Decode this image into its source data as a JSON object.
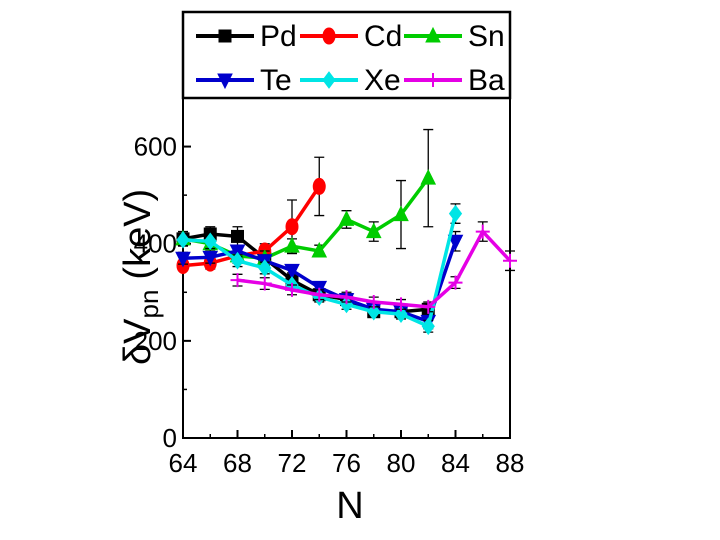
{
  "chart_data": {
    "type": "line",
    "title": "",
    "xlabel": "N",
    "ylabel": {
      "main": "δV",
      "sub": "pn",
      "unit": "(keV)"
    },
    "xlim": [
      64,
      88
    ],
    "ylim": [
      0,
      700
    ],
    "xticks": [
      64,
      68,
      72,
      76,
      80,
      84,
      88
    ],
    "yticks": [
      0,
      200,
      400,
      600
    ],
    "xtick_labels": [
      "64",
      "68",
      "72",
      "76",
      "80",
      "84",
      "88"
    ],
    "ytick_labels": [
      "0",
      "200",
      "400",
      "600"
    ],
    "legend_position": "top",
    "series": [
      {
        "name": "Pd",
        "color": "#000000",
        "marker": "square",
        "points": [
          {
            "x": 64,
            "y": 410,
            "err": 15
          },
          {
            "x": 66,
            "y": 420,
            "err": 15
          },
          {
            "x": 68,
            "y": 415,
            "err": 20
          },
          {
            "x": 70,
            "y": 370,
            "err": 15
          },
          {
            "x": 72,
            "y": 325,
            "err": 15
          },
          {
            "x": 74,
            "y": 295,
            "err": 12
          },
          {
            "x": 76,
            "y": 285,
            "err": 10
          },
          {
            "x": 78,
            "y": 260,
            "err": 10
          },
          {
            "x": 80,
            "y": 260,
            "err": 10
          },
          {
            "x": 82,
            "y": 265,
            "err": 10
          }
        ]
      },
      {
        "name": "Cd",
        "color": "#ff0000",
        "marker": "circle",
        "points": [
          {
            "x": 64,
            "y": 355,
            "err": 10
          },
          {
            "x": 66,
            "y": 360,
            "err": 12
          },
          {
            "x": 68,
            "y": 375,
            "err": 15
          },
          {
            "x": 70,
            "y": 385,
            "err": 15
          },
          {
            "x": 72,
            "y": 435,
            "err": 55
          },
          {
            "x": 74,
            "y": 518,
            "err": 60
          }
        ]
      },
      {
        "name": "Sn",
        "color": "#00cc00",
        "marker": "triangle-up",
        "points": [
          {
            "x": 64,
            "y": 410,
            "err": 12
          },
          {
            "x": 66,
            "y": 400,
            "err": 15
          },
          {
            "x": 68,
            "y": 375,
            "err": 15
          },
          {
            "x": 70,
            "y": 370,
            "err": 15
          },
          {
            "x": 72,
            "y": 395,
            "err": 15
          },
          {
            "x": 74,
            "y": 385,
            "err": 12
          },
          {
            "x": 76,
            "y": 450,
            "err": 18
          },
          {
            "x": 78,
            "y": 425,
            "err": 20
          },
          {
            "x": 80,
            "y": 460,
            "err": 70
          },
          {
            "x": 82,
            "y": 535,
            "err": 100
          }
        ]
      },
      {
        "name": "Te",
        "color": "#0000cc",
        "marker": "triangle-down",
        "points": [
          {
            "x": 64,
            "y": 370,
            "err": 12
          },
          {
            "x": 66,
            "y": 372,
            "err": 12
          },
          {
            "x": 68,
            "y": 385,
            "err": 12
          },
          {
            "x": 70,
            "y": 365,
            "err": 12
          },
          {
            "x": 72,
            "y": 345,
            "err": 10
          },
          {
            "x": 74,
            "y": 310,
            "err": 10
          },
          {
            "x": 76,
            "y": 285,
            "err": 10
          },
          {
            "x": 78,
            "y": 265,
            "err": 10
          },
          {
            "x": 80,
            "y": 260,
            "err": 10
          },
          {
            "x": 82,
            "y": 240,
            "err": 15
          },
          {
            "x": 84,
            "y": 405,
            "err": 20
          }
        ]
      },
      {
        "name": "Xe",
        "color": "#00e5e5",
        "marker": "diamond",
        "points": [
          {
            "x": 64,
            "y": 408,
            "err": 12
          },
          {
            "x": 66,
            "y": 405,
            "err": 15
          },
          {
            "x": 68,
            "y": 365,
            "err": 12
          },
          {
            "x": 70,
            "y": 350,
            "err": 12
          },
          {
            "x": 72,
            "y": 315,
            "err": 10
          },
          {
            "x": 74,
            "y": 290,
            "err": 10
          },
          {
            "x": 76,
            "y": 275,
            "err": 10
          },
          {
            "x": 78,
            "y": 260,
            "err": 10
          },
          {
            "x": 80,
            "y": 255,
            "err": 10
          },
          {
            "x": 82,
            "y": 230,
            "err": 12
          },
          {
            "x": 84,
            "y": 462,
            "err": 20
          }
        ]
      },
      {
        "name": "Ba",
        "color": "#e500e5",
        "marker": "plus",
        "points": [
          {
            "x": 68,
            "y": 325,
            "err": 12
          },
          {
            "x": 70,
            "y": 318,
            "err": 12
          },
          {
            "x": 72,
            "y": 305,
            "err": 10
          },
          {
            "x": 74,
            "y": 295,
            "err": 10
          },
          {
            "x": 76,
            "y": 290,
            "err": 10
          },
          {
            "x": 78,
            "y": 280,
            "err": 10
          },
          {
            "x": 80,
            "y": 275,
            "err": 10
          },
          {
            "x": 82,
            "y": 270,
            "err": 10
          },
          {
            "x": 84,
            "y": 320,
            "err": 12
          },
          {
            "x": 86,
            "y": 425,
            "err": 20
          },
          {
            "x": 88,
            "y": 365,
            "err": 20
          }
        ]
      }
    ]
  }
}
